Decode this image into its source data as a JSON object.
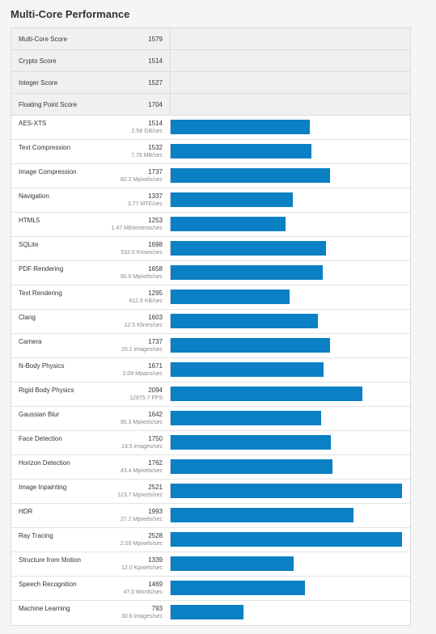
{
  "page": {
    "title": "Multi-Core Performance"
  },
  "summary": [
    {
      "label": "Multi-Core Score",
      "value": "1579"
    },
    {
      "label": "Crypto Score",
      "value": "1514"
    },
    {
      "label": "Integer Score",
      "value": "1527"
    },
    {
      "label": "Floating Point Score",
      "value": "1704"
    }
  ],
  "benchmarks": [
    {
      "label": "AES-XTS",
      "score": "1514",
      "rate": "2.58 GB/sec"
    },
    {
      "label": "Text Compression",
      "score": "1532",
      "rate": "7.75 MB/sec"
    },
    {
      "label": "Image Compression",
      "score": "1737",
      "rate": "82.2 Mpixels/sec"
    },
    {
      "label": "Navigation",
      "score": "1337",
      "rate": "3.77 MTE/sec"
    },
    {
      "label": "HTML5",
      "score": "1253",
      "rate": "1.47 MElements/sec"
    },
    {
      "label": "SQLite",
      "score": "1698",
      "rate": "532.0 Krows/sec"
    },
    {
      "label": "PDF Rendering",
      "score": "1658",
      "rate": "90.0 Mpixels/sec"
    },
    {
      "label": "Text Rendering",
      "score": "1295",
      "rate": "412.6 KB/sec"
    },
    {
      "label": "Clang",
      "score": "1603",
      "rate": "12.5 Klines/sec"
    },
    {
      "label": "Camera",
      "score": "1737",
      "rate": "20.1 images/sec"
    },
    {
      "label": "N-Body Physics",
      "score": "1671",
      "rate": "2.09 Mpairs/sec"
    },
    {
      "label": "Rigid Body Physics",
      "score": "2094",
      "rate": "12975.7 FPS"
    },
    {
      "label": "Gaussian Blur",
      "score": "1642",
      "rate": "90.3 Mpixels/sec"
    },
    {
      "label": "Face Detection",
      "score": "1750",
      "rate": "13.5 images/sec"
    },
    {
      "label": "Horizon Detection",
      "score": "1762",
      "rate": "43.4 Mpixels/sec"
    },
    {
      "label": "Image Inpainting",
      "score": "2521",
      "rate": "123.7 Mpixels/sec"
    },
    {
      "label": "HDR",
      "score": "1993",
      "rate": "27.2 Mpixels/sec"
    },
    {
      "label": "Ray Tracing",
      "score": "2528",
      "rate": "2.03 Mpixels/sec"
    },
    {
      "label": "Structure from Motion",
      "score": "1339",
      "rate": "12.0 Kpixels/sec"
    },
    {
      "label": "Speech Recognition",
      "score": "1469",
      "rate": "47.0 Words/sec"
    },
    {
      "label": "Machine Learning",
      "score": "793",
      "rate": "30.6 images/sec"
    }
  ],
  "colors": {
    "bar": "#0b80c4"
  },
  "chart_data": {
    "type": "bar",
    "categories": [
      "AES-XTS",
      "Text Compression",
      "Image Compression",
      "Navigation",
      "HTML5",
      "SQLite",
      "PDF Rendering",
      "Text Rendering",
      "Clang",
      "Camera",
      "N-Body Physics",
      "Rigid Body Physics",
      "Gaussian Blur",
      "Face Detection",
      "Horizon Detection",
      "Image Inpainting",
      "HDR",
      "Ray Tracing",
      "Structure from Motion",
      "Speech Recognition",
      "Machine Learning"
    ],
    "values": [
      1514,
      1532,
      1737,
      1337,
      1253,
      1698,
      1658,
      1295,
      1603,
      1737,
      1671,
      2094,
      1642,
      1750,
      1762,
      2521,
      1993,
      2528,
      1339,
      1469,
      793
    ],
    "title": "Multi-Core Performance",
    "xlabel": "",
    "ylabel": "",
    "ylim": [
      0,
      2560
    ]
  }
}
